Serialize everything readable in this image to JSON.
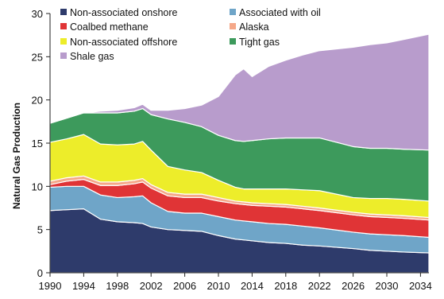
{
  "chart_data": {
    "type": "area",
    "stacked": true,
    "title": "",
    "xlabel": "",
    "ylabel": "Natural Gas Production",
    "xlim": [
      1990,
      2035
    ],
    "ylim": [
      0,
      30
    ],
    "xticks": [
      1990,
      1994,
      1998,
      2002,
      2006,
      2010,
      2014,
      2018,
      2022,
      2026,
      2030,
      2034
    ],
    "xtick_labels": [
      "1990",
      "1994",
      "1998",
      "2002",
      "2006",
      "2010",
      "2014",
      "2018",
      "2022",
      "2026",
      "2030",
      "2034"
    ],
    "yticks": [
      0,
      5,
      10,
      15,
      20,
      25,
      30
    ],
    "ytick_labels": [
      "0",
      "5",
      "10",
      "15",
      "20",
      "25",
      "30"
    ],
    "grid": false,
    "legend_position": "top-left",
    "x": [
      1990,
      1992,
      1994,
      1996,
      1998,
      2000,
      2001,
      2002,
      2004,
      2006,
      2008,
      2010,
      2012,
      2013,
      2014,
      2016,
      2018,
      2020,
      2022,
      2026,
      2028,
      2030,
      2032,
      2035
    ],
    "series": [
      {
        "name": "Non-associated onshore",
        "color": "#2e3b6b",
        "values": [
          7.2,
          7.3,
          7.4,
          6.2,
          5.9,
          5.8,
          5.7,
          5.3,
          5.0,
          4.9,
          4.8,
          4.3,
          3.9,
          3.8,
          3.7,
          3.5,
          3.4,
          3.2,
          3.1,
          2.8,
          2.6,
          2.5,
          2.4,
          2.3
        ]
      },
      {
        "name": "Associated with oil",
        "color": "#6fa5c8",
        "values": [
          2.7,
          2.7,
          2.6,
          2.8,
          2.8,
          3.0,
          3.2,
          2.8,
          2.1,
          2.0,
          2.1,
          2.2,
          2.2,
          2.2,
          2.2,
          2.2,
          2.2,
          2.2,
          2.1,
          1.9,
          1.9,
          1.9,
          1.9,
          1.8
        ]
      },
      {
        "name": "Coalbed methane",
        "color": "#e03436",
        "values": [
          0.3,
          0.6,
          0.8,
          1.1,
          1.4,
          1.5,
          1.6,
          1.7,
          1.8,
          1.8,
          1.8,
          1.8,
          1.9,
          1.9,
          1.9,
          2.0,
          2.0,
          2.0,
          2.0,
          2.0,
          2.0,
          2.0,
          2.0,
          2.0
        ]
      },
      {
        "name": "Alaska",
        "color": "#f5a889",
        "values": [
          0.4,
          0.4,
          0.4,
          0.4,
          0.4,
          0.4,
          0.4,
          0.4,
          0.4,
          0.4,
          0.4,
          0.4,
          0.3,
          0.3,
          0.3,
          0.3,
          0.3,
          0.3,
          0.3,
          0.3,
          0.3,
          0.3,
          0.3,
          0.3
        ]
      },
      {
        "name": "Non-associated offshore",
        "color": "#eded2a",
        "values": [
          4.5,
          4.5,
          4.8,
          4.4,
          4.3,
          4.2,
          4.3,
          4.0,
          3.0,
          2.8,
          2.5,
          2.0,
          1.6,
          1.5,
          1.6,
          1.7,
          1.8,
          1.9,
          2.0,
          1.7,
          1.8,
          1.9,
          1.9,
          1.9
        ]
      },
      {
        "name": "Tight gas",
        "color": "#3d9a5c",
        "values": [
          2.2,
          2.4,
          2.5,
          3.6,
          3.7,
          3.8,
          3.8,
          4.1,
          5.5,
          5.5,
          5.3,
          5.2,
          5.4,
          5.5,
          5.6,
          5.8,
          5.9,
          6.0,
          6.1,
          5.9,
          5.8,
          5.8,
          5.8,
          5.9
        ]
      },
      {
        "name": "Shale gas",
        "color": "#b89ccc",
        "values": [
          0.0,
          0.0,
          0.0,
          0.2,
          0.3,
          0.4,
          0.5,
          0.5,
          1.0,
          1.6,
          2.5,
          4.5,
          7.6,
          8.4,
          7.4,
          8.4,
          9.0,
          9.6,
          10.1,
          11.5,
          12.0,
          12.2,
          12.7,
          13.4
        ]
      }
    ]
  }
}
